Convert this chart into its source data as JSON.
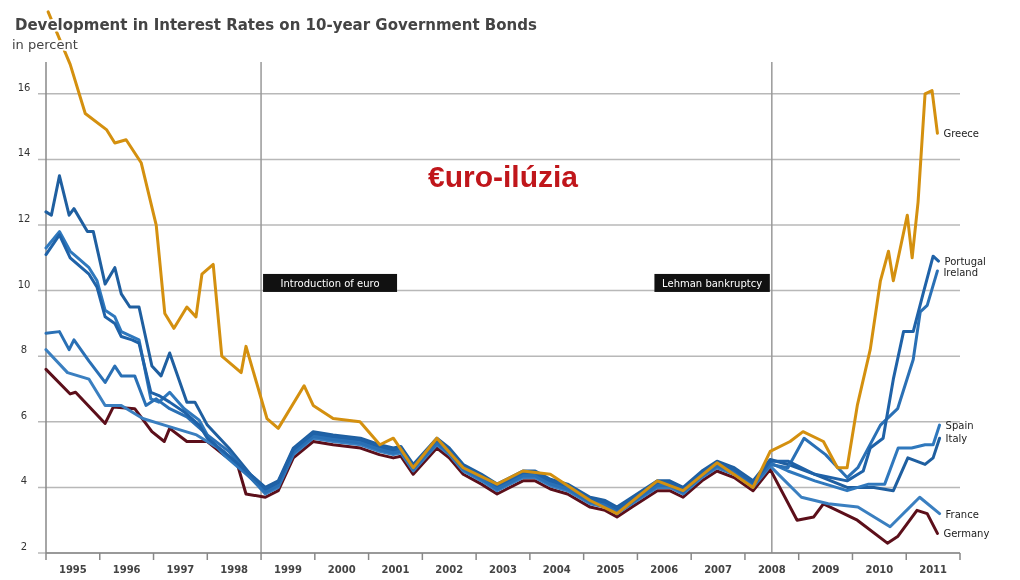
{
  "chart_data": {
    "type": "line",
    "title": "Development in Interest Rates on 10-year Government Bonds",
    "subtitle": "in percent",
    "annotations": [
      "€uro-ilúzia"
    ],
    "xlim": [
      1995,
      2012
    ],
    "ylim": [
      2,
      18.8
    ],
    "yticks": [
      2,
      4,
      6,
      8,
      10,
      12,
      14,
      16
    ],
    "xticks": [
      {
        "value": 1995,
        "label": null
      },
      {
        "value": 1995.5,
        "label": "1995"
      },
      {
        "value": 1996,
        "label": null
      },
      {
        "value": 1996.5,
        "label": "1996"
      },
      {
        "value": 1997,
        "label": null
      },
      {
        "value": 1997.5,
        "label": "1997"
      },
      {
        "value": 1998,
        "label": null
      },
      {
        "value": 1998.5,
        "label": "1998"
      },
      {
        "value": 1999,
        "label": null
      },
      {
        "value": 1999.5,
        "label": "1999"
      },
      {
        "value": 2000,
        "label": null
      },
      {
        "value": 2000.5,
        "label": "2000"
      },
      {
        "value": 2001,
        "label": null
      },
      {
        "value": 2001.5,
        "label": "2001"
      },
      {
        "value": 2002,
        "label": null
      },
      {
        "value": 2002.5,
        "label": "2002"
      },
      {
        "value": 2003,
        "label": null
      },
      {
        "value": 2003.5,
        "label": "2003"
      },
      {
        "value": 2004,
        "label": null
      },
      {
        "value": 2004.5,
        "label": "2004"
      },
      {
        "value": 2005,
        "label": null
      },
      {
        "value": 2005.5,
        "label": "2005"
      },
      {
        "value": 2006,
        "label": null
      },
      {
        "value": 2006.5,
        "label": "2006"
      },
      {
        "value": 2007,
        "label": null
      },
      {
        "value": 2007.5,
        "label": "2007"
      },
      {
        "value": 2008,
        "label": null
      },
      {
        "value": 2008.5,
        "label": "2008"
      },
      {
        "value": 2009,
        "label": null
      },
      {
        "value": 2009.5,
        "label": "2009"
      },
      {
        "value": 2010,
        "label": null
      },
      {
        "value": 2010.5,
        "label": "2010"
      },
      {
        "value": 2011,
        "label": null
      },
      {
        "value": 2011.5,
        "label": "2011"
      },
      {
        "value": 2012,
        "label": null
      }
    ],
    "grid": "y",
    "ref_lines": [
      {
        "axis": "x",
        "value": 1999.0,
        "label": "Introduction of euro"
      },
      {
        "axis": "x",
        "value": 2008.5,
        "label": "Lehman bankruptcy"
      }
    ],
    "series": [
      {
        "name": "Greece",
        "color": "#d4900f",
        "x": [
          1995.04,
          1995.45,
          1995.73,
          1996.13,
          1996.28,
          1996.49,
          1996.77,
          1997.05,
          1997.21,
          1997.38,
          1997.62,
          1997.79,
          1997.9,
          1998.11,
          1998.27,
          1998.63,
          1998.72,
          1999.11,
          1999.32,
          1999.8,
          1999.97,
          2000.34,
          2000.84,
          2001.21,
          2001.46,
          2001.83,
          2002.27,
          2002.76,
          2003.39,
          2003.87,
          2004.38,
          2005.12,
          2005.62,
          2006.37,
          2006.85,
          2007.48,
          2008.15,
          2008.47,
          2008.84,
          2009.08,
          2009.46,
          2009.72,
          2009.9,
          2010.09,
          2010.33,
          2010.52,
          2010.67,
          2010.76,
          2011.02,
          2011.11,
          2011.22,
          2011.35,
          2011.48,
          2011.58
        ],
        "values": [
          18.5,
          16.9,
          15.4,
          14.9,
          14.5,
          14.6,
          13.9,
          12.0,
          9.3,
          8.85,
          9.5,
          9.2,
          10.5,
          10.8,
          8.0,
          7.5,
          8.3,
          6.1,
          5.8,
          7.1,
          6.5,
          6.1,
          6.0,
          5.3,
          5.5,
          4.6,
          5.5,
          4.6,
          4.1,
          4.5,
          4.4,
          3.6,
          3.2,
          4.2,
          3.9,
          4.75,
          4.0,
          5.1,
          5.4,
          5.7,
          5.4,
          4.6,
          4.6,
          6.5,
          8.2,
          10.3,
          11.2,
          10.3,
          12.3,
          11.0,
          12.7,
          16.0,
          16.1,
          14.8
        ]
      },
      {
        "name": "Portugal",
        "color": "#1f62a8",
        "x": [
          1995,
          1995.25,
          1995.45,
          1995.8,
          1995.95,
          1996.1,
          1996.28,
          1996.4,
          1996.6,
          1996.73,
          1996.95,
          1997.1,
          1997.3,
          1997.57,
          1997.85,
          1998.0,
          1998.3,
          1998.8,
          1999.08,
          1999.32,
          1999.6,
          1999.97,
          2000.34,
          2000.85,
          2001.2,
          2001.46,
          2001.6,
          2001.83,
          2002.27,
          2002.5,
          2002.76,
          2003.1,
          2003.39,
          2003.87,
          2004.1,
          2004.38,
          2004.7,
          2005.12,
          2005.4,
          2005.62,
          2005.9,
          2006.37,
          2006.6,
          2006.85,
          2007.2,
          2007.48,
          2007.8,
          2008.15,
          2008.47,
          2008.8,
          2009.3,
          2009.9,
          2010.2,
          2010.33,
          2010.57,
          2010.76,
          2010.95,
          2011.13,
          2011.32,
          2011.5,
          2011.6
        ],
        "values": [
          11.1,
          11.7,
          11.0,
          10.5,
          10.1,
          9.2,
          9.0,
          8.6,
          8.5,
          8.4,
          6.9,
          6.8,
          6.6,
          6.3,
          5.9,
          5.5,
          5.1,
          4.4,
          3.95,
          4.15,
          5.15,
          5.65,
          5.55,
          5.45,
          5.25,
          5.15,
          5.2,
          4.65,
          5.45,
          5.15,
          4.65,
          4.35,
          4.05,
          4.45,
          4.45,
          4.2,
          4.05,
          3.65,
          3.55,
          3.35,
          3.65,
          4.15,
          4.15,
          3.95,
          4.45,
          4.75,
          4.55,
          4.15,
          4.8,
          4.8,
          4.4,
          4.2,
          4.5,
          5.2,
          5.5,
          7.3,
          8.75,
          8.75,
          9.95,
          11.05,
          10.9
        ]
      },
      {
        "name": "Ireland",
        "color": "#2a70b5",
        "x": [
          1995,
          1995.25,
          1995.43,
          1995.52,
          1995.8,
          1996.1,
          1996.28,
          1996.4,
          1996.65,
          1996.86,
          1997.05,
          1997.3,
          1997.62,
          1998.0,
          1998.4,
          1998.8,
          1999.08,
          1999.32,
          1999.6,
          1999.97,
          2000.34,
          2000.85,
          2001.2,
          2001.46,
          2001.6,
          2001.83,
          2002.27,
          2002.5,
          2002.76,
          2003.1,
          2003.39,
          2003.87,
          2004.1,
          2004.38,
          2004.7,
          2005.12,
          2005.4,
          2005.62,
          2005.9,
          2006.37,
          2006.6,
          2006.85,
          2007.2,
          2007.48,
          2007.8,
          2008.15,
          2008.47,
          2008.8,
          2009.1,
          2009.5,
          2009.9,
          2010.1,
          2010.52,
          2010.84,
          2011.13,
          2011.26,
          2011.39,
          2011.58
        ],
        "values": [
          8.7,
          8.75,
          8.2,
          8.5,
          7.85,
          7.2,
          7.7,
          7.4,
          7.4,
          6.5,
          6.7,
          6.4,
          6.15,
          5.6,
          5.1,
          4.3,
          3.85,
          4.05,
          5.05,
          5.55,
          5.45,
          5.35,
          5.15,
          5.05,
          5.1,
          4.55,
          5.35,
          5.05,
          4.55,
          4.25,
          3.95,
          4.35,
          4.35,
          4.1,
          3.95,
          3.55,
          3.45,
          3.25,
          3.55,
          4.05,
          4.05,
          3.85,
          4.35,
          4.65,
          4.45,
          4.05,
          4.7,
          4.6,
          5.5,
          5.0,
          4.3,
          4.6,
          5.9,
          6.4,
          7.9,
          9.35,
          9.55,
          10.6
        ]
      },
      {
        "name": "Spain",
        "color": "#2f78bd",
        "x": [
          1995,
          1995.25,
          1995.45,
          1995.8,
          1995.95,
          1996.1,
          1996.28,
          1996.4,
          1996.6,
          1996.73,
          1996.95,
          1997.1,
          1997.3,
          1997.57,
          1997.85,
          1998.0,
          1998.3,
          1998.8,
          1999.08,
          1999.32,
          1999.6,
          1999.97,
          2000.34,
          2000.85,
          2001.2,
          2001.46,
          2001.6,
          2001.83,
          2002.27,
          2002.5,
          2002.76,
          2003.1,
          2003.39,
          2003.87,
          2004.1,
          2004.38,
          2004.7,
          2005.12,
          2005.4,
          2005.62,
          2005.9,
          2006.37,
          2006.6,
          2006.85,
          2007.2,
          2007.48,
          2007.8,
          2008.15,
          2008.47,
          2008.8,
          2009.3,
          2009.9,
          2010.3,
          2010.6,
          2010.85,
          2011.1,
          2011.35,
          2011.5,
          2011.62
        ],
        "values": [
          11.3,
          11.8,
          11.2,
          10.7,
          10.3,
          9.4,
          9.2,
          8.75,
          8.6,
          8.5,
          6.7,
          6.6,
          6.9,
          6.4,
          6.05,
          5.6,
          5.0,
          4.3,
          3.9,
          4.1,
          5.1,
          5.6,
          5.5,
          5.4,
          5.2,
          5.1,
          5.15,
          4.6,
          5.4,
          5.1,
          4.6,
          4.3,
          4.0,
          4.4,
          4.4,
          4.15,
          4.0,
          3.6,
          3.5,
          3.3,
          3.6,
          4.1,
          4.1,
          3.9,
          4.4,
          4.7,
          4.5,
          4.1,
          4.75,
          4.5,
          4.2,
          3.9,
          4.1,
          4.1,
          5.2,
          5.2,
          5.3,
          5.3,
          5.9
        ]
      },
      {
        "name": "Italy",
        "color": "#1f5fa0",
        "x": [
          1995,
          1995.1,
          1995.25,
          1995.43,
          1995.52,
          1995.77,
          1995.88,
          1996.1,
          1996.28,
          1996.4,
          1996.56,
          1996.73,
          1996.97,
          1997.14,
          1997.3,
          1997.62,
          1997.77,
          1998.0,
          1998.4,
          1998.8,
          1999.08,
          1999.32,
          1999.6,
          1999.97,
          2000.34,
          2000.85,
          2001.2,
          2001.46,
          2001.6,
          2001.83,
          2002.27,
          2002.5,
          2002.76,
          2003.1,
          2003.39,
          2003.87,
          2004.1,
          2004.38,
          2004.7,
          2005.12,
          2005.4,
          2005.62,
          2005.9,
          2006.37,
          2006.6,
          2006.85,
          2007.2,
          2007.48,
          2007.8,
          2008.15,
          2008.47,
          2008.8,
          2009.3,
          2009.9,
          2010.4,
          2010.76,
          2011.03,
          2011.35,
          2011.5,
          2011.62
        ],
        "values": [
          12.4,
          12.3,
          13.5,
          12.3,
          12.5,
          11.8,
          11.8,
          10.2,
          10.7,
          9.9,
          9.5,
          9.5,
          7.7,
          7.4,
          8.1,
          6.6,
          6.6,
          5.9,
          5.2,
          4.4,
          4.0,
          4.2,
          5.2,
          5.7,
          5.6,
          5.5,
          5.3,
          5.2,
          5.25,
          4.7,
          5.5,
          5.2,
          4.7,
          4.4,
          4.1,
          4.5,
          4.5,
          4.25,
          4.1,
          3.7,
          3.6,
          3.4,
          3.7,
          4.2,
          4.2,
          4.0,
          4.5,
          4.8,
          4.6,
          4.2,
          4.85,
          4.7,
          4.4,
          4.0,
          4.0,
          3.9,
          4.9,
          4.7,
          4.9,
          5.5
        ]
      },
      {
        "name": "France",
        "color": "#3a7fc0",
        "x": [
          1995,
          1995.4,
          1995.8,
          1996.1,
          1996.4,
          1996.8,
          1997.2,
          1997.8,
          1998.3,
          1998.8,
          1999.08,
          1999.32,
          1999.6,
          1999.97,
          2000.34,
          2000.85,
          2001.2,
          2001.46,
          2001.6,
          2001.83,
          2002.27,
          2002.5,
          2002.76,
          2003.1,
          2003.39,
          2003.87,
          2004.1,
          2004.38,
          2004.7,
          2005.12,
          2005.4,
          2005.62,
          2005.9,
          2006.37,
          2006.6,
          2006.85,
          2007.2,
          2007.48,
          2007.8,
          2008.15,
          2008.47,
          2009.05,
          2009.55,
          2010.1,
          2010.7,
          2011.25,
          2011.62
        ],
        "values": [
          8.2,
          7.5,
          7.3,
          6.5,
          6.5,
          6.1,
          5.9,
          5.6,
          5.1,
          4.3,
          3.8,
          4.0,
          5.0,
          5.5,
          5.4,
          5.3,
          5.1,
          5.0,
          5.05,
          4.5,
          5.3,
          5.0,
          4.5,
          4.2,
          3.9,
          4.3,
          4.3,
          4.05,
          3.9,
          3.5,
          3.4,
          3.2,
          3.5,
          4.0,
          4.0,
          3.8,
          4.3,
          4.6,
          4.4,
          4.0,
          4.65,
          3.7,
          3.5,
          3.4,
          2.8,
          3.7,
          3.2
        ]
      },
      {
        "name": "Germany",
        "color": "#5c0f1a",
        "x": [
          1995,
          1995.45,
          1995.55,
          1996.1,
          1996.25,
          1996.65,
          1996.97,
          1997.2,
          1997.3,
          1997.62,
          1998.0,
          1998.3,
          1998.56,
          1998.72,
          1999.08,
          1999.32,
          1999.6,
          1999.97,
          2000.34,
          2000.85,
          2001.2,
          2001.46,
          2001.6,
          2001.83,
          2002.27,
          2002.5,
          2002.76,
          2003.1,
          2003.39,
          2003.87,
          2004.1,
          2004.38,
          2004.7,
          2005.12,
          2005.4,
          2005.62,
          2005.9,
          2006.37,
          2006.6,
          2006.85,
          2007.2,
          2007.48,
          2007.8,
          2008.15,
          2008.47,
          2008.97,
          2009.28,
          2009.46,
          2010.09,
          2010.65,
          2010.84,
          2011.2,
          2011.39,
          2011.58
        ],
        "values": [
          7.6,
          6.85,
          6.9,
          5.95,
          6.45,
          6.4,
          5.7,
          5.4,
          5.8,
          5.4,
          5.4,
          5.0,
          4.7,
          3.8,
          3.7,
          3.9,
          4.9,
          5.4,
          5.3,
          5.2,
          5.0,
          4.9,
          4.95,
          4.4,
          5.2,
          4.9,
          4.4,
          4.1,
          3.8,
          4.2,
          4.2,
          3.95,
          3.8,
          3.4,
          3.3,
          3.1,
          3.4,
          3.9,
          3.9,
          3.7,
          4.2,
          4.5,
          4.3,
          3.9,
          4.55,
          3.0,
          3.1,
          3.5,
          3.0,
          2.3,
          2.5,
          3.3,
          3.2,
          2.6
        ]
      }
    ]
  }
}
